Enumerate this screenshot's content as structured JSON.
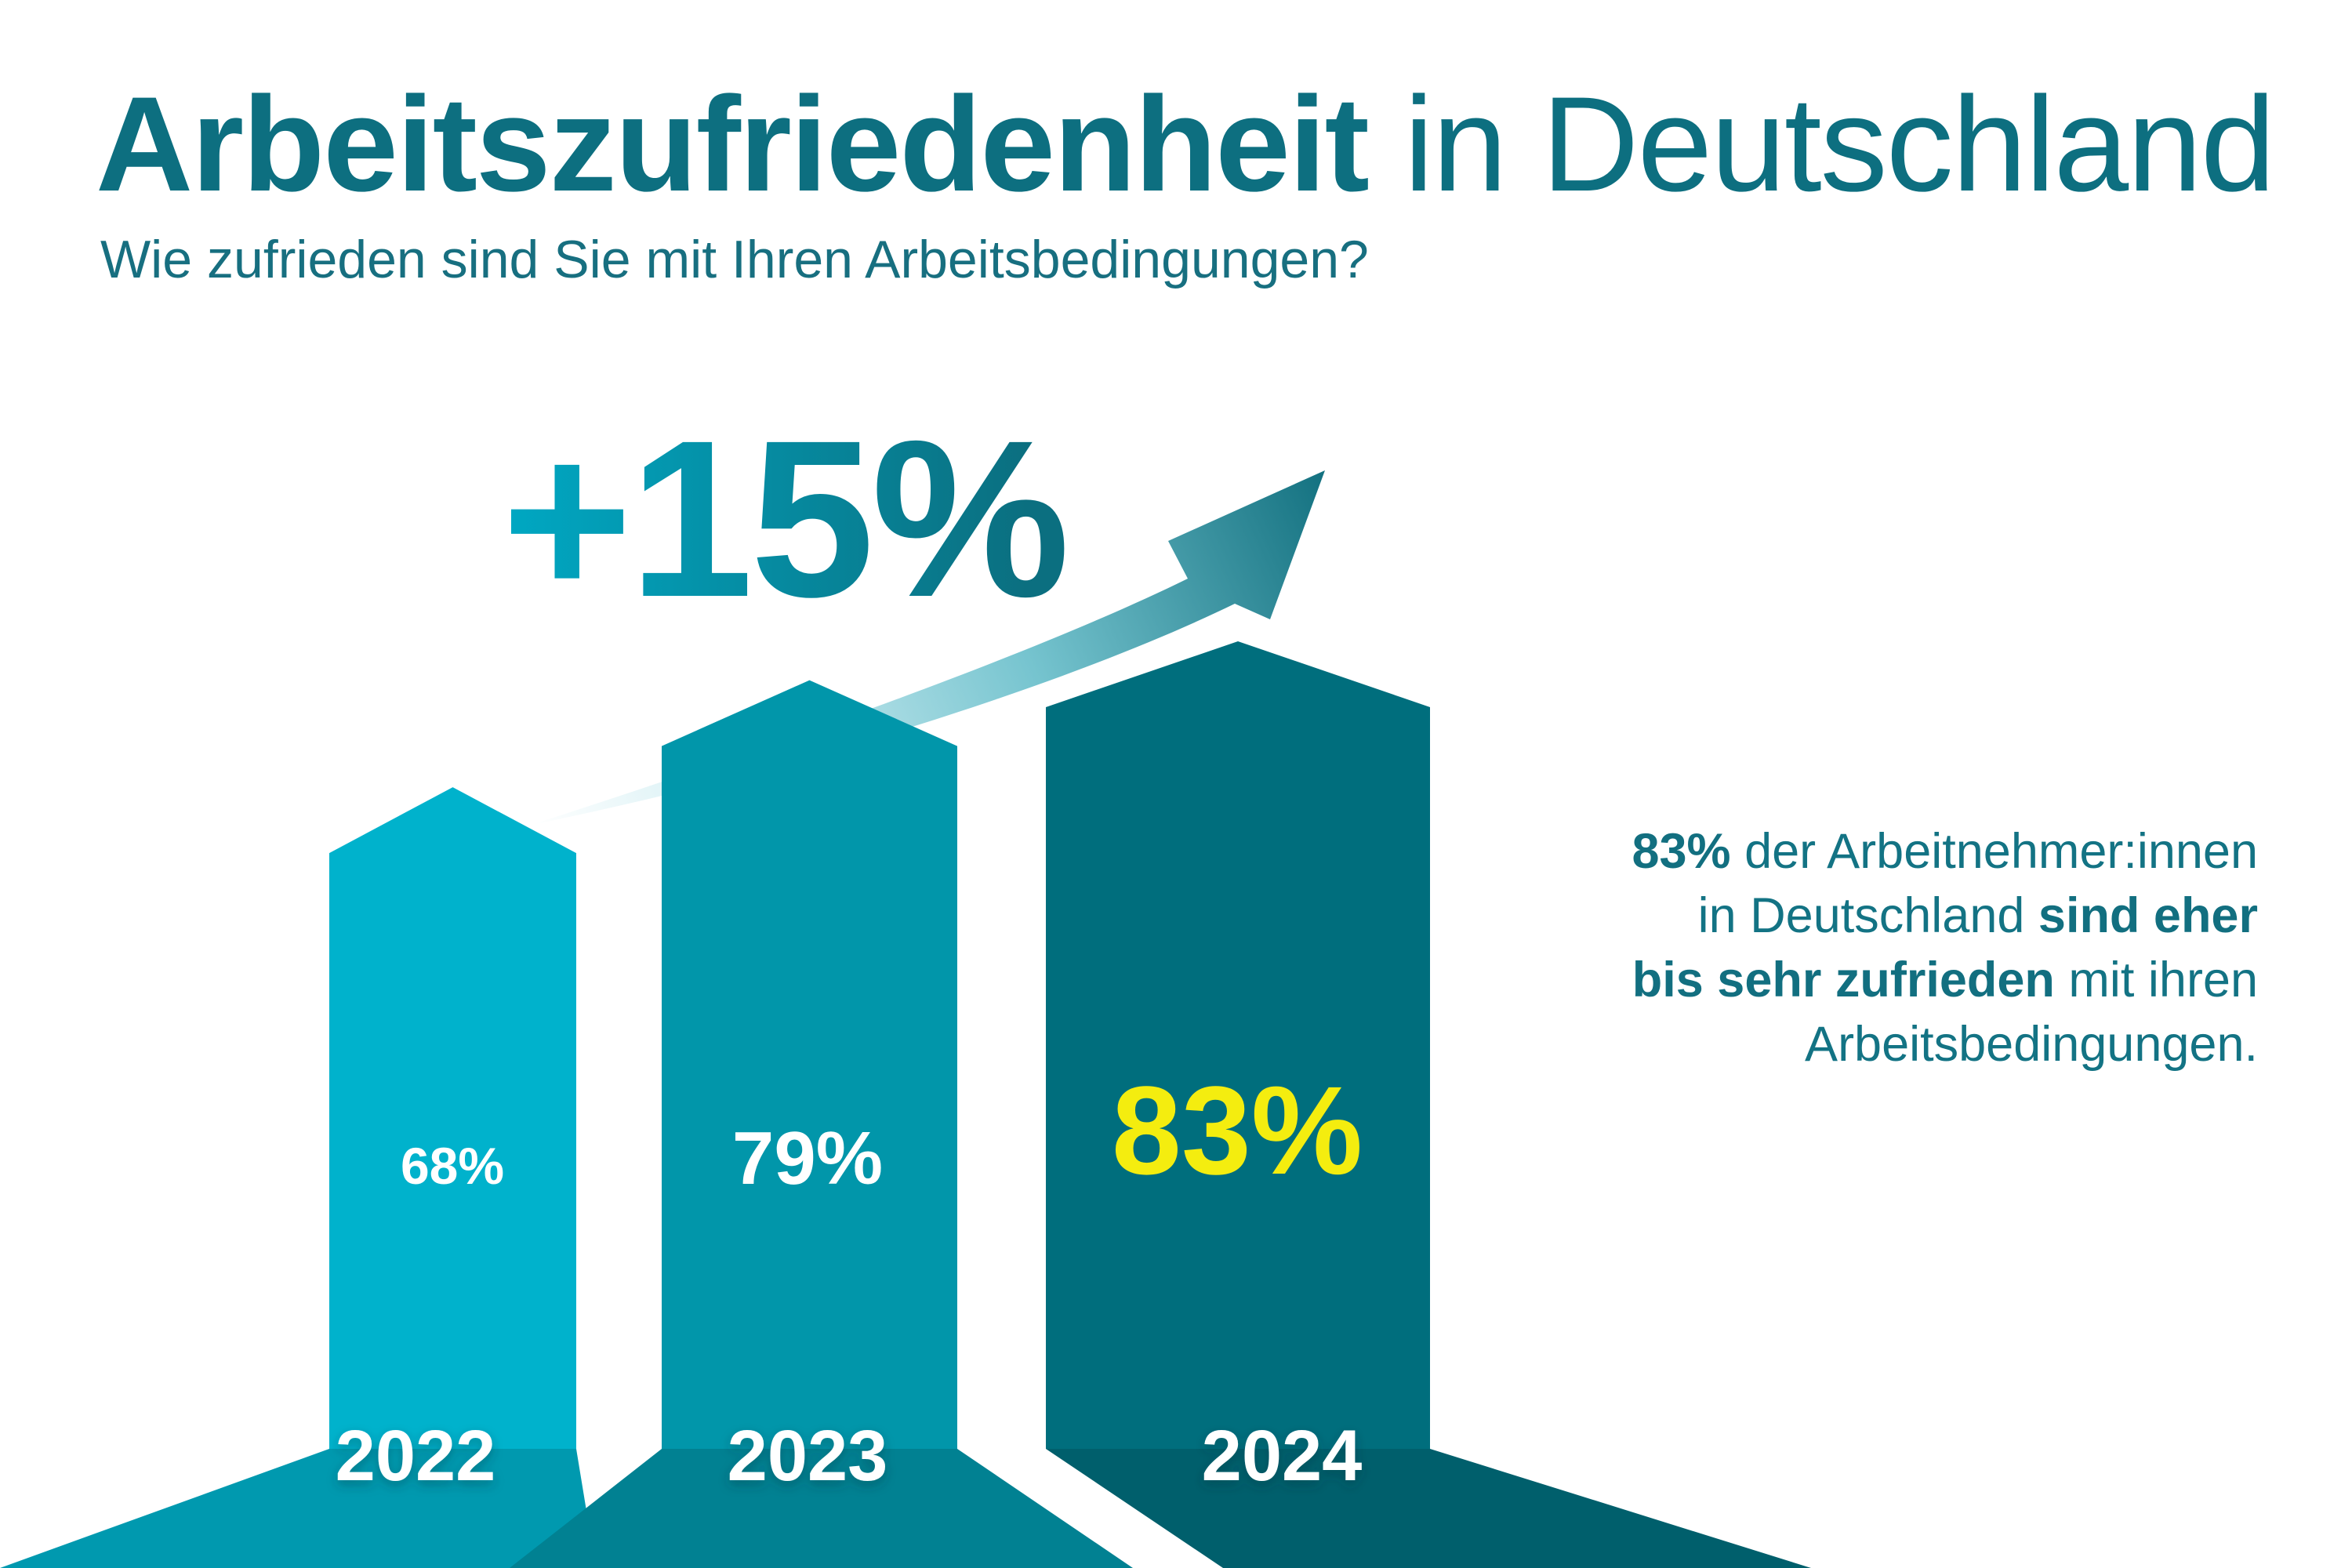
{
  "title": {
    "bold": "Arbeitszufriedenheit",
    "light": " in Deutschland"
  },
  "subtitle": "Wie zufrieden sind Sie mit Ihren Arbeitsbedingungen?",
  "growth": {
    "label": "+15%"
  },
  "summary": {
    "lines": [
      [
        "83%",
        " der Arbeitnehmer:innen"
      ],
      [
        "in Deutschland ",
        "sind eher"
      ],
      [
        "bis sehr zufrieden",
        " mit ihren"
      ],
      [
        "Arbeitsbedingungen."
      ]
    ]
  },
  "colors": {
    "bar_2022": "#00b2cc",
    "bar_2023": "#0196aa",
    "bar_2024": "#006e7d",
    "text_teal": "#0d6f80",
    "highlight_value": "#f4ed0f"
  },
  "chart_data": {
    "type": "bar",
    "title": "",
    "categories": [
      "2022",
      "2023",
      "2024"
    ],
    "values": [
      68,
      79,
      83
    ],
    "value_labels": [
      "68%",
      "79%",
      "83%"
    ],
    "xlabel": "",
    "ylabel": "",
    "unit": "%",
    "ylim": [
      0,
      100
    ],
    "grid": false,
    "legend": "none"
  }
}
